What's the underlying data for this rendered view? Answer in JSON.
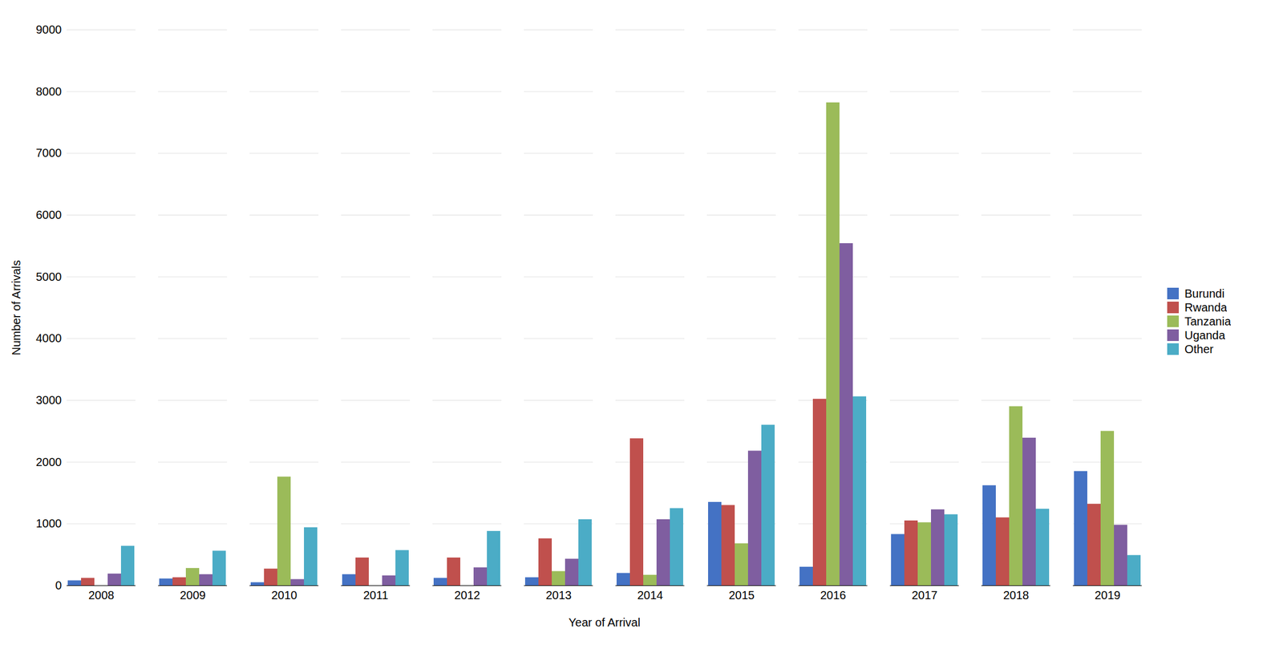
{
  "chart_data": {
    "type": "bar",
    "categories": [
      "2008",
      "2009",
      "2010",
      "2011",
      "2012",
      "2013",
      "2014",
      "2015",
      "2016",
      "2017",
      "2018",
      "2019"
    ],
    "series": [
      {
        "name": "Burundi",
        "color": "#4472C4",
        "values": [
          80,
          110,
          50,
          180,
          120,
          130,
          200,
          1350,
          300,
          830,
          1620,
          1850
        ]
      },
      {
        "name": "Rwanda",
        "color": "#C0504D",
        "values": [
          120,
          130,
          270,
          450,
          450,
          760,
          2380,
          1300,
          3020,
          1050,
          1100,
          1320
        ]
      },
      {
        "name": "Tanzania",
        "color": "#9BBB59",
        "values": [
          0,
          280,
          1760,
          0,
          0,
          230,
          170,
          680,
          7820,
          1020,
          2900,
          2500
        ]
      },
      {
        "name": "Uganda",
        "color": "#7F5EA0",
        "values": [
          190,
          180,
          100,
          160,
          290,
          430,
          1070,
          2180,
          5540,
          1230,
          2390,
          980
        ]
      },
      {
        "name": "Other",
        "color": "#4BACC6",
        "values": [
          640,
          560,
          940,
          570,
          880,
          1070,
          1250,
          2600,
          3060,
          1150,
          1240,
          490
        ]
      }
    ],
    "xlabel": "Year of Arrival",
    "ylabel": "Number of Arrivals",
    "ylim": [
      0,
      9000
    ],
    "yticks": [
      0,
      1000,
      2000,
      3000,
      4000,
      5000,
      6000,
      7000,
      8000,
      9000
    ],
    "grid": true,
    "legend": "right"
  }
}
